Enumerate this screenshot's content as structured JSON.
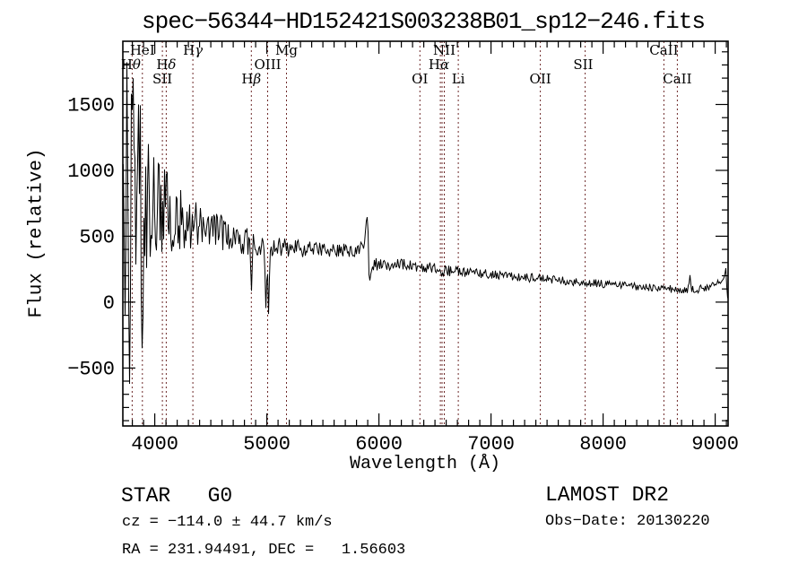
{
  "title": "spec−56344−HD152421S003238B01_sp12−246.fits",
  "chart_data": {
    "type": "line",
    "title": "spec−56344−HD152421S003238B01_sp12−246.fits",
    "xlabel": "Wavelength (Å)",
    "ylabel": "Flux (relative)",
    "xlim": [
      3715,
      9115
    ],
    "ylim": [
      -940,
      1980
    ],
    "xticks": [
      4000,
      5000,
      6000,
      7000,
      8000,
      9000
    ],
    "yticks": [
      -500,
      0,
      500,
      1000,
      1500
    ],
    "x_minor_step": 100,
    "y_minor_step": 100,
    "grid": false,
    "legend": "none",
    "line_color": "#000000",
    "marker_line_color": "#6e2a2a",
    "spectral_lines": [
      {
        "label": "Hθ",
        "row": 2,
        "lambdas": [
          3798
        ],
        "label_lambda": 3786
      },
      {
        "label": "HeI",
        "row": 1,
        "lambdas": [
          3889
        ]
      },
      {
        "label": "SII",
        "row": 3,
        "lambdas": [
          4068
        ]
      },
      {
        "label": "Hδ",
        "row": 2,
        "lambdas": [
          4102
        ]
      },
      {
        "label": "Hγ",
        "row": 1,
        "lambdas": [
          4340
        ]
      },
      {
        "label": "Hβ",
        "row": 3,
        "lambdas": [
          4861
        ]
      },
      {
        "label": "OIII",
        "row": 2,
        "lambdas": [
          5007
        ]
      },
      {
        "label": "Mg",
        "row": 1,
        "lambdas": [
          5175
        ]
      },
      {
        "label": "OI",
        "row": 3,
        "lambdas": [
          6365
        ]
      },
      {
        "label": "Hα",
        "row": 2,
        "lambdas": [
          6563
        ],
        "label_lambda": 6535
      },
      {
        "label": "NII",
        "row": 1,
        "lambdas": [
          6548,
          6583
        ],
        "label_lambda": 6583
      },
      {
        "label": "Li",
        "row": 3,
        "lambdas": [
          6708
        ]
      },
      {
        "label": "OII",
        "row": 3,
        "lambdas": [
          7440
        ]
      },
      {
        "label": "SII",
        "row": 2,
        "lambdas": [
          7840
        ],
        "label_lambda": 7822
      },
      {
        "label": "CaII",
        "row": 1,
        "lambdas": [
          8542
        ]
      },
      {
        "label": "CaII",
        "row": 3,
        "lambdas": [
          8662
        ]
      }
    ],
    "spectrum": {
      "seed": 20130220,
      "continuum_anchors": [
        [
          3715,
          650
        ],
        [
          3760,
          640
        ],
        [
          3800,
          700
        ],
        [
          3860,
          800
        ],
        [
          3920,
          820
        ],
        [
          3960,
          780
        ],
        [
          4000,
          750
        ],
        [
          4100,
          700
        ],
        [
          4200,
          640
        ],
        [
          4340,
          590
        ],
        [
          4500,
          550
        ],
        [
          4700,
          500
        ],
        [
          4861,
          450
        ],
        [
          5000,
          430
        ],
        [
          5175,
          415
        ],
        [
          5400,
          400
        ],
        [
          5600,
          385
        ],
        [
          5800,
          400
        ],
        [
          5870,
          430
        ],
        [
          5893,
          630
        ],
        [
          5910,
          250
        ],
        [
          5960,
          290
        ],
        [
          6100,
          290
        ],
        [
          6300,
          280
        ],
        [
          6450,
          260
        ],
        [
          6563,
          240
        ],
        [
          6800,
          225
        ],
        [
          7000,
          210
        ],
        [
          7200,
          195
        ],
        [
          7440,
          178
        ],
        [
          7600,
          165
        ],
        [
          7840,
          148
        ],
        [
          8100,
          132
        ],
        [
          8400,
          112
        ],
        [
          8550,
          102
        ],
        [
          8700,
          95
        ],
        [
          8800,
          92
        ],
        [
          8900,
          105
        ],
        [
          9000,
          125
        ],
        [
          9060,
          170
        ],
        [
          9115,
          140
        ]
      ],
      "noise_anchors": [
        [
          3715,
          1250
        ],
        [
          3760,
          1150
        ],
        [
          3800,
          950
        ],
        [
          3860,
          800
        ],
        [
          3920,
          650
        ],
        [
          3960,
          520
        ],
        [
          4000,
          380
        ],
        [
          4100,
          330
        ],
        [
          4200,
          240
        ],
        [
          4340,
          185
        ],
        [
          4500,
          150
        ],
        [
          4700,
          120
        ],
        [
          4861,
          100
        ],
        [
          5000,
          90
        ],
        [
          5175,
          72
        ],
        [
          5400,
          62
        ],
        [
          5600,
          55
        ],
        [
          5900,
          50
        ],
        [
          6300,
          45
        ],
        [
          6563,
          42
        ],
        [
          7000,
          36
        ],
        [
          7500,
          33
        ],
        [
          8000,
          30
        ],
        [
          8500,
          28
        ],
        [
          9000,
          32
        ],
        [
          9115,
          35
        ]
      ],
      "features": [
        [
          3738,
          -780
        ],
        [
          3745,
          1820
        ],
        [
          3770,
          -620
        ],
        [
          3800,
          1700
        ],
        [
          3852,
          1500
        ],
        [
          3880,
          -350
        ],
        [
          4861,
          85
        ],
        [
          4990,
          -45
        ],
        [
          5007,
          -90
        ],
        [
          5893,
          645
        ],
        [
          5915,
          165
        ],
        [
          8770,
          205
        ],
        [
          9060,
          165
        ],
        [
          9088,
          258
        ],
        [
          9105,
          30
        ]
      ]
    }
  },
  "annotations": {
    "class_line": "STAR   G0",
    "cz_line": "cz = −114.0 ± 44.7 km/s",
    "radec_line": "RA = 231.94491, DEC =   1.56603",
    "survey": "LAMOST DR2",
    "obs_date": "Obs−Date: 20130220"
  }
}
